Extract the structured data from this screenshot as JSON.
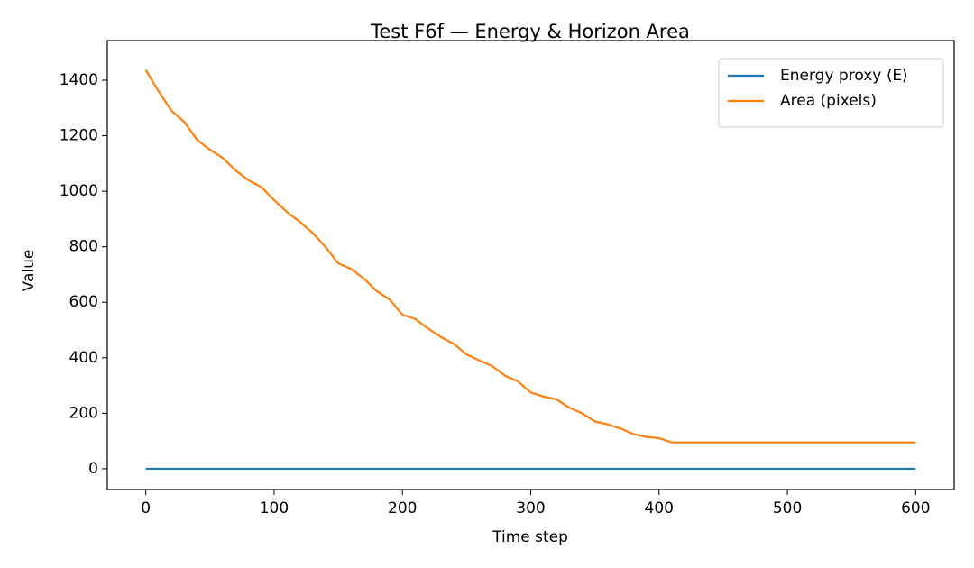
{
  "chart_data": {
    "type": "line",
    "title": "Test F6f — Energy & Horizon Area",
    "xlabel": "Time step",
    "ylabel": "Value",
    "x": [
      0,
      10,
      20,
      30,
      40,
      50,
      60,
      70,
      80,
      90,
      100,
      110,
      120,
      130,
      140,
      150,
      160,
      170,
      180,
      190,
      200,
      210,
      220,
      230,
      240,
      250,
      260,
      270,
      280,
      290,
      300,
      310,
      320,
      330,
      340,
      350,
      360,
      370,
      380,
      390,
      400,
      410,
      420,
      430,
      440,
      450,
      460,
      470,
      480,
      490,
      500,
      510,
      520,
      530,
      540,
      550,
      560,
      570,
      580,
      590,
      600
    ],
    "series": [
      {
        "name": "Energy proxy ⟨E⟩",
        "color": "#1f77b4",
        "values": [
          0,
          0,
          0,
          0,
          0,
          0,
          0,
          0,
          0,
          0,
          0,
          0,
          0,
          0,
          0,
          0,
          0,
          0,
          0,
          0,
          0,
          0,
          0,
          0,
          0,
          0,
          0,
          0,
          0,
          0,
          0,
          0,
          0,
          0,
          0,
          0,
          0,
          0,
          0,
          0,
          0,
          0,
          0,
          0,
          0,
          0,
          0,
          0,
          0,
          0,
          0,
          0,
          0,
          0,
          0,
          0,
          0,
          0,
          0,
          0,
          0
        ]
      },
      {
        "name": "Area (pixels)",
        "color": "#ff7f0e",
        "values": [
          1437,
          1360,
          1290,
          1250,
          1185,
          1150,
          1120,
          1075,
          1040,
          1015,
          968,
          925,
          890,
          850,
          800,
          740,
          720,
          685,
          640,
          610,
          555,
          540,
          505,
          475,
          450,
          412,
          390,
          370,
          335,
          315,
          275,
          260,
          250,
          220,
          200,
          170,
          160,
          145,
          125,
          115,
          110,
          95,
          95,
          95,
          95,
          95,
          95,
          95,
          95,
          95,
          95,
          95,
          95,
          95,
          95,
          95,
          95,
          95,
          95,
          95,
          95
        ]
      }
    ],
    "xlim": [
      -30,
      630
    ],
    "xticks": [
      0,
      100,
      200,
      300,
      400,
      500,
      600
    ],
    "ylim": [
      -75,
      1543
    ],
    "yticks": [
      0,
      200,
      400,
      600,
      800,
      1000,
      1200,
      1400
    ],
    "legend": "upper right",
    "grid": false
  }
}
